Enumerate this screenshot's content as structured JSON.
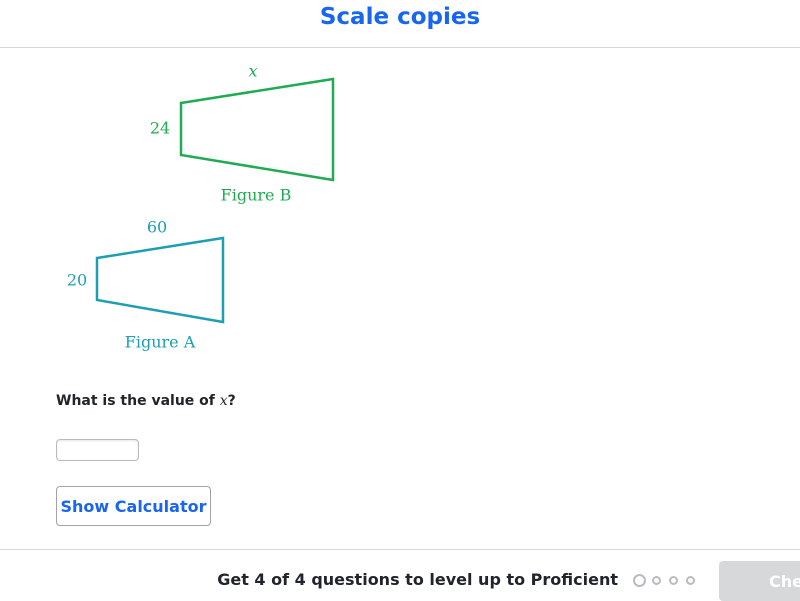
{
  "header": {
    "title": "Scale copies"
  },
  "figures": [
    {
      "caption": "Figure B",
      "top_label": "x",
      "side_label": "24"
    },
    {
      "caption": "Figure A",
      "top_label": "60",
      "side_label": "20"
    }
  ],
  "question": {
    "prefix": "What is the value of",
    "variable": "x",
    "suffix": "?"
  },
  "calculator_button": "Show Calculator",
  "footer": {
    "progress_text": "Get 4 of 4 questions to level up to Proficient",
    "check_button": "Check"
  }
}
